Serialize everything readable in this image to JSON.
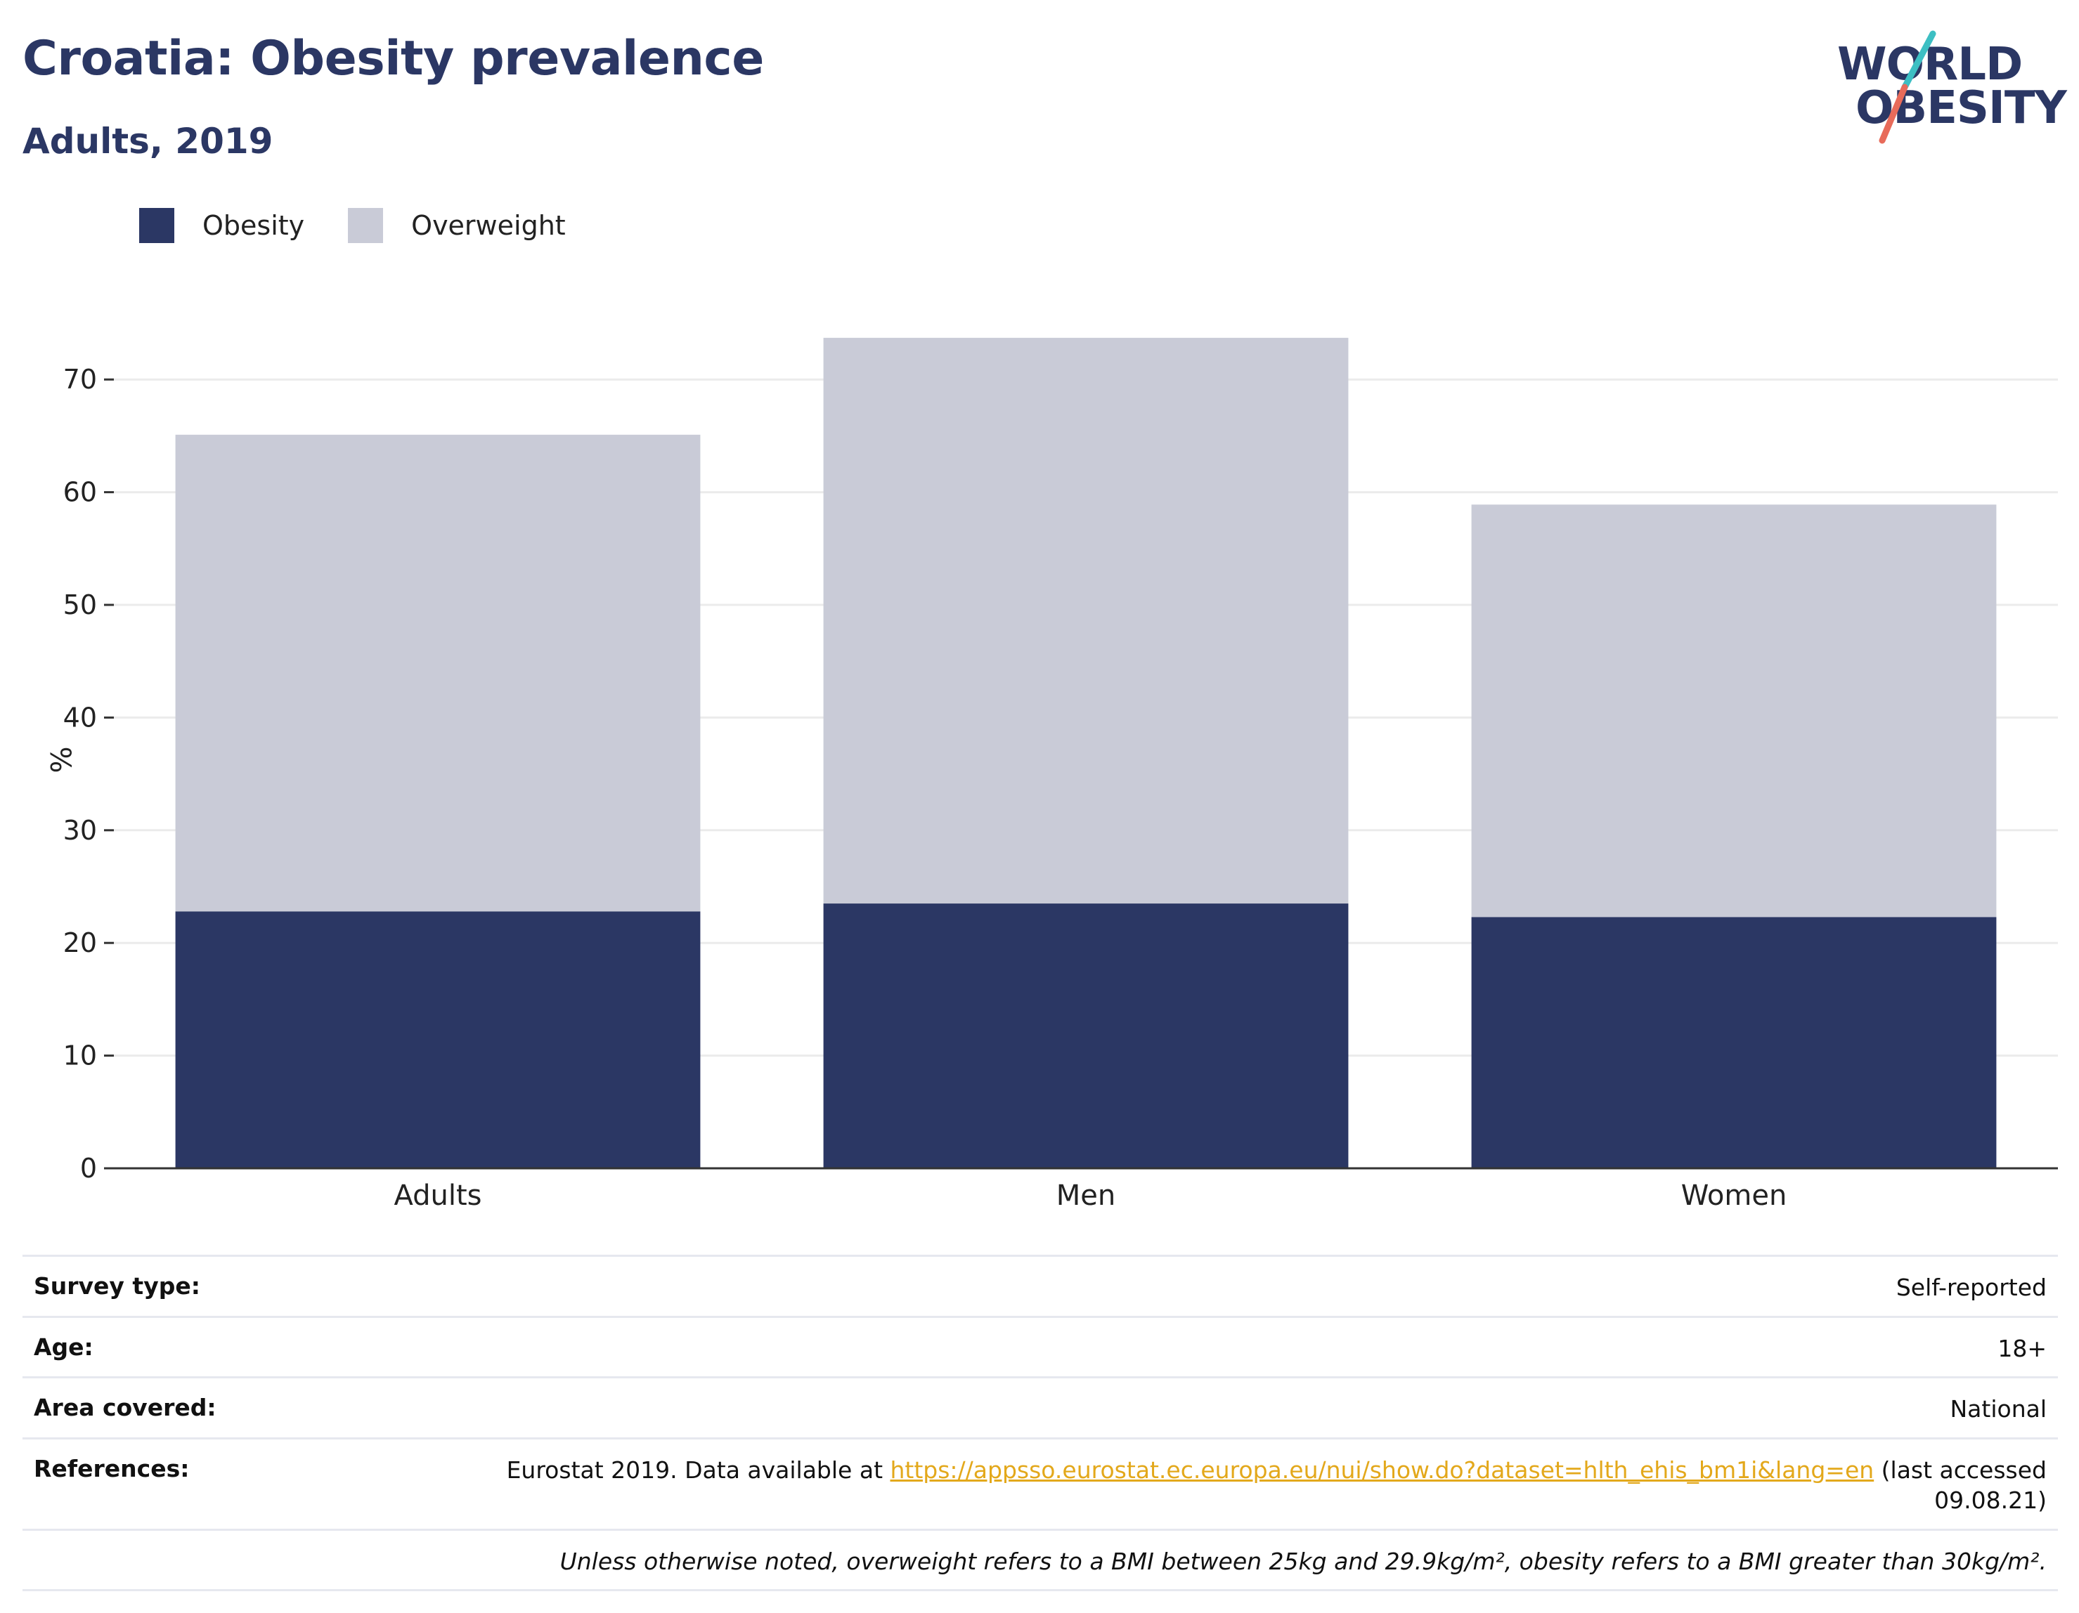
{
  "header": {
    "title": "Croatia: Obesity prevalence",
    "subtitle": "Adults, 2019"
  },
  "logo": {
    "line1": "WORLD",
    "line2": "OBESITY",
    "slash_colors": [
      "#3dbfc3",
      "#e86b5a"
    ]
  },
  "colors": {
    "obesity": "#2b3764",
    "overweight": "#c9cbd7",
    "link": "#e3a81b",
    "title": "#2b3764"
  },
  "chart_data": {
    "type": "bar",
    "stacked": true,
    "categories": [
      "Adults",
      "Men",
      "Women"
    ],
    "series": [
      {
        "name": "Obesity",
        "values": [
          22.8,
          23.5,
          22.3
        ]
      },
      {
        "name": "Overweight",
        "values": [
          42.3,
          50.2,
          36.6
        ]
      }
    ],
    "xlabel": "",
    "ylabel": "%",
    "ylim": [
      0,
      75
    ],
    "yticks": [
      0,
      10,
      20,
      30,
      40,
      50,
      60,
      70
    ],
    "grid": true,
    "legend": "top-left"
  },
  "legend": {
    "obesity_label": "Obesity",
    "overweight_label": "Overweight"
  },
  "info": {
    "survey_type": {
      "key": "Survey type:",
      "value": "Self-reported"
    },
    "age": {
      "key": "Age:",
      "value": "18+"
    },
    "area": {
      "key": "Area covered:",
      "value": "National"
    },
    "references": {
      "key": "References:",
      "prefix": "Eurostat 2019. Data available at ",
      "link": "https://appsso.eurostat.ec.europa.eu/nui/show.do?dataset=hlth_ehis_bm1i&lang=en",
      "suffix": " (last accessed 09.08.21)"
    },
    "note": "Unless otherwise noted, overweight refers to a BMI between 25kg and 29.9kg/m², obesity refers to a BMI greater than 30kg/m²."
  }
}
